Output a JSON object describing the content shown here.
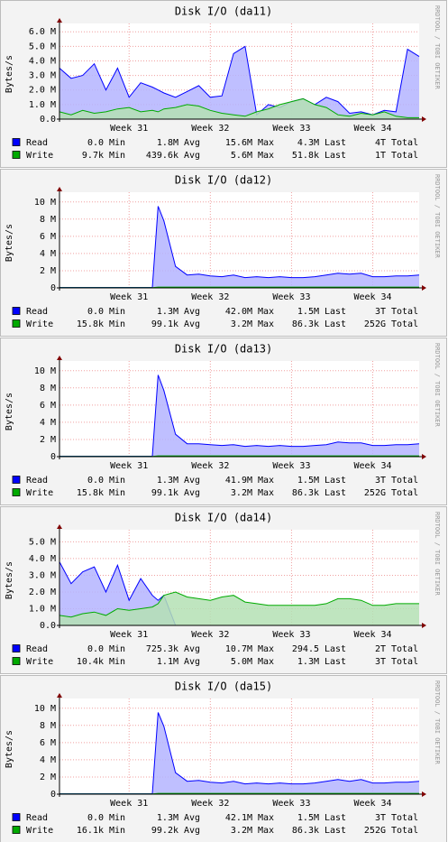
{
  "chart_data": [
    {
      "type": "area",
      "title": "Disk I/O (da11)",
      "y_label": "Bytes/s",
      "watermark": "RRDTOOL / TOBI OETIKER",
      "stat_labels": [
        "Min",
        "Avg",
        "Max",
        "Last",
        "Total"
      ],
      "x": [
        0,
        1,
        2,
        3,
        4,
        5,
        6,
        7,
        8,
        8.5,
        9,
        10,
        11,
        12,
        13,
        14,
        15,
        16,
        17,
        18,
        19,
        20,
        21,
        22,
        23,
        24,
        25,
        26,
        27,
        28,
        29,
        30,
        31
      ],
      "xlim": [
        0,
        31
      ],
      "xticks": [
        {
          "value": 6,
          "label": "Week 31"
        },
        {
          "value": 13,
          "label": "Week 32"
        },
        {
          "value": 20,
          "label": "Week 33"
        },
        {
          "value": 27,
          "label": "Week 34"
        }
      ],
      "ylim": [
        0,
        6200000
      ],
      "yticks": [
        {
          "value": 0,
          "label": "0.0"
        },
        {
          "value": 1000000,
          "label": "1.0 M"
        },
        {
          "value": 2000000,
          "label": "2.0 M"
        },
        {
          "value": 3000000,
          "label": "3.0 M"
        },
        {
          "value": 4000000,
          "label": "4.0 M"
        },
        {
          "value": 5000000,
          "label": "5.0 M"
        },
        {
          "value": 6000000,
          "label": "6.0 M"
        }
      ],
      "grid": true,
      "series": [
        {
          "name": "Read",
          "color": "#0000ff",
          "fill": "#b4b4ff",
          "stats": [
            "0.0",
            "1.8M",
            "15.6M",
            "4.3M",
            "4T"
          ],
          "values": [
            3500000,
            2800000,
            3000000,
            3800000,
            2000000,
            3500000,
            1500000,
            2500000,
            2200000,
            2000000,
            1800000,
            1500000,
            1900000,
            2300000,
            1500000,
            1600000,
            4500000,
            5000000,
            300000,
            1000000,
            800000,
            1200000,
            1400000,
            1000000,
            1500000,
            1200000,
            400000,
            500000,
            300000,
            600000,
            500000,
            4800000,
            4300000
          ]
        },
        {
          "name": "Write",
          "color": "#00aa00",
          "fill": "#b4e0b4",
          "stats": [
            "9.7k",
            "439.6k",
            "5.6M",
            "51.8k",
            "1T"
          ],
          "values": [
            500000,
            300000,
            600000,
            400000,
            500000,
            700000,
            800000,
            500000,
            600000,
            500000,
            700000,
            800000,
            1000000,
            900000,
            600000,
            400000,
            300000,
            200000,
            500000,
            700000,
            1000000,
            1200000,
            1400000,
            1000000,
            800000,
            300000,
            200000,
            400000,
            300000,
            500000,
            200000,
            100000,
            100000
          ]
        }
      ]
    },
    {
      "type": "area",
      "title": "Disk I/O (da12)",
      "y_label": "Bytes/s",
      "watermark": "RRDTOOL / TOBI OETIKER",
      "stat_labels": [
        "Min",
        "Avg",
        "Max",
        "Last",
        "Total"
      ],
      "x": [
        0,
        1,
        2,
        3,
        4,
        5,
        6,
        7,
        8,
        8.5,
        9,
        10,
        11,
        12,
        13,
        14,
        15,
        16,
        17,
        18,
        19,
        20,
        21,
        22,
        23,
        24,
        25,
        26,
        27,
        28,
        29,
        30,
        31
      ],
      "xlim": [
        0,
        31
      ],
      "xticks": [
        {
          "value": 6,
          "label": "Week 31"
        },
        {
          "value": 13,
          "label": "Week 32"
        },
        {
          "value": 20,
          "label": "Week 33"
        },
        {
          "value": 27,
          "label": "Week 34"
        }
      ],
      "ylim": [
        0,
        10500000
      ],
      "yticks": [
        0,
        {
          "value": 2000000,
          "label": "2 M"
        },
        {
          "value": 4000000,
          "label": "4 M"
        },
        {
          "value": 6000000,
          "label": "6 M"
        },
        {
          "value": 8000000,
          "label": "8 M"
        },
        {
          "value": 10000000,
          "label": "10 M"
        }
      ],
      "grid": true,
      "series": [
        {
          "name": "Read",
          "color": "#0000ff",
          "fill": "#b4b4ff",
          "stats": [
            "0.0",
            "1.3M",
            "42.0M",
            "1.5M",
            "3T"
          ],
          "values": [
            50000,
            50000,
            50000,
            50000,
            50000,
            50000,
            50000,
            50000,
            50000,
            9500000,
            7800000,
            2500000,
            1500000,
            1600000,
            1400000,
            1300000,
            1500000,
            1200000,
            1300000,
            1200000,
            1300000,
            1200000,
            1200000,
            1300000,
            1500000,
            1700000,
            1600000,
            1700000,
            1300000,
            1300000,
            1400000,
            1400000,
            1500000
          ]
        },
        {
          "name": "Write",
          "color": "#00aa00",
          "fill": "#b4e0b4",
          "stats": [
            "15.8k",
            "99.1k",
            "3.2M",
            "86.3k",
            "252G"
          ],
          "values": [
            20000,
            20000,
            20000,
            20000,
            20000,
            20000,
            20000,
            20000,
            20000,
            90000,
            90000,
            90000,
            90000,
            90000,
            90000,
            90000,
            90000,
            90000,
            90000,
            90000,
            90000,
            90000,
            90000,
            90000,
            90000,
            90000,
            90000,
            90000,
            90000,
            90000,
            90000,
            90000,
            90000
          ]
        }
      ]
    },
    {
      "type": "area",
      "title": "Disk I/O (da13)",
      "y_label": "Bytes/s",
      "watermark": "RRDTOOL / TOBI OETIKER",
      "stat_labels": [
        "Min",
        "Avg",
        "Max",
        "Last",
        "Total"
      ],
      "x": [
        0,
        1,
        2,
        3,
        4,
        5,
        6,
        7,
        8,
        8.5,
        9,
        10,
        11,
        12,
        13,
        14,
        15,
        16,
        17,
        18,
        19,
        20,
        21,
        22,
        23,
        24,
        25,
        26,
        27,
        28,
        29,
        30,
        31
      ],
      "xlim": [
        0,
        31
      ],
      "xticks": [
        {
          "value": 6,
          "label": "Week 31"
        },
        {
          "value": 13,
          "label": "Week 32"
        },
        {
          "value": 20,
          "label": "Week 33"
        },
        {
          "value": 27,
          "label": "Week 34"
        }
      ],
      "ylim": [
        0,
        10500000
      ],
      "yticks": [
        0,
        {
          "value": 2000000,
          "label": "2 M"
        },
        {
          "value": 4000000,
          "label": "4 M"
        },
        {
          "value": 6000000,
          "label": "6 M"
        },
        {
          "value": 8000000,
          "label": "8 M"
        },
        {
          "value": 10000000,
          "label": "10 M"
        }
      ],
      "grid": true,
      "series": [
        {
          "name": "Read",
          "color": "#0000ff",
          "fill": "#b4b4ff",
          "stats": [
            "0.0",
            "1.3M",
            "41.9M",
            "1.5M",
            "3T"
          ],
          "values": [
            50000,
            50000,
            50000,
            50000,
            50000,
            50000,
            50000,
            50000,
            50000,
            9500000,
            7700000,
            2600000,
            1500000,
            1500000,
            1400000,
            1300000,
            1400000,
            1200000,
            1300000,
            1200000,
            1300000,
            1200000,
            1200000,
            1300000,
            1400000,
            1700000,
            1600000,
            1600000,
            1300000,
            1300000,
            1400000,
            1400000,
            1500000
          ]
        },
        {
          "name": "Write",
          "color": "#00aa00",
          "fill": "#b4e0b4",
          "stats": [
            "15.8k",
            "99.1k",
            "3.2M",
            "86.3k",
            "252G"
          ],
          "values": [
            20000,
            20000,
            20000,
            20000,
            20000,
            20000,
            20000,
            20000,
            20000,
            90000,
            90000,
            90000,
            90000,
            90000,
            90000,
            90000,
            90000,
            90000,
            90000,
            90000,
            90000,
            90000,
            90000,
            90000,
            90000,
            90000,
            90000,
            90000,
            90000,
            90000,
            90000,
            90000,
            90000
          ]
        }
      ]
    },
    {
      "type": "area",
      "title": "Disk I/O (da14)",
      "y_label": "Bytes/s",
      "watermark": "RRDTOOL / TOBI OETIKER",
      "stat_labels": [
        "Min",
        "Avg",
        "Max",
        "Last",
        "Total"
      ],
      "x": [
        0,
        1,
        2,
        3,
        4,
        5,
        6,
        7,
        8,
        8.5,
        9,
        10,
        11,
        12,
        13,
        14,
        15,
        16,
        17,
        18,
        19,
        20,
        21,
        22,
        23,
        24,
        25,
        26,
        27,
        28,
        29,
        30,
        31
      ],
      "xlim": [
        0,
        31
      ],
      "xticks": [
        {
          "value": 6,
          "label": "Week 31"
        },
        {
          "value": 13,
          "label": "Week 32"
        },
        {
          "value": 20,
          "label": "Week 33"
        },
        {
          "value": 27,
          "label": "Week 34"
        }
      ],
      "ylim": [
        0,
        5400000
      ],
      "yticks": [
        {
          "value": 0,
          "label": "0.0"
        },
        {
          "value": 1000000,
          "label": "1.0 M"
        },
        {
          "value": 2000000,
          "label": "2.0 M"
        },
        {
          "value": 3000000,
          "label": "3.0 M"
        },
        {
          "value": 4000000,
          "label": "4.0 M"
        },
        {
          "value": 5000000,
          "label": "5.0 M"
        }
      ],
      "grid": true,
      "series": [
        {
          "name": "Read",
          "color": "#0000ff",
          "fill": "#b4b4ff",
          "stats": [
            "0.0",
            "725.3k",
            "10.7M",
            "294.5",
            "2T"
          ],
          "values": [
            3800000,
            2500000,
            3200000,
            3500000,
            2000000,
            3600000,
            1500000,
            2800000,
            1800000,
            1500000,
            1800000,
            0,
            0,
            0,
            0,
            0,
            0,
            0,
            0,
            0,
            0,
            0,
            0,
            0,
            0,
            0,
            0,
            0,
            0,
            0,
            0,
            0,
            0
          ]
        },
        {
          "name": "Write",
          "color": "#00aa00",
          "fill": "#b4e0b4",
          "stats": [
            "10.4k",
            "1.1M",
            "5.0M",
            "1.3M",
            "3T"
          ],
          "values": [
            600000,
            500000,
            700000,
            800000,
            600000,
            1000000,
            900000,
            1000000,
            1100000,
            1300000,
            1800000,
            2000000,
            1700000,
            1600000,
            1500000,
            1700000,
            1800000,
            1400000,
            1300000,
            1200000,
            1200000,
            1200000,
            1200000,
            1200000,
            1300000,
            1600000,
            1600000,
            1500000,
            1200000,
            1200000,
            1300000,
            1300000,
            1300000
          ]
        }
      ]
    },
    {
      "type": "area",
      "title": "Disk I/O (da15)",
      "y_label": "Bytes/s",
      "watermark": "RRDTOOL / TOBI OETIKER",
      "stat_labels": [
        "Min",
        "Avg",
        "Max",
        "Last",
        "Total"
      ],
      "x": [
        0,
        1,
        2,
        3,
        4,
        5,
        6,
        7,
        8,
        8.5,
        9,
        10,
        11,
        12,
        13,
        14,
        15,
        16,
        17,
        18,
        19,
        20,
        21,
        22,
        23,
        24,
        25,
        26,
        27,
        28,
        29,
        30,
        31
      ],
      "xlim": [
        0,
        31
      ],
      "xticks": [
        {
          "value": 6,
          "label": "Week 31"
        },
        {
          "value": 13,
          "label": "Week 32"
        },
        {
          "value": 20,
          "label": "Week 33"
        },
        {
          "value": 27,
          "label": "Week 34"
        }
      ],
      "ylim": [
        0,
        10500000
      ],
      "yticks": [
        0,
        {
          "value": 2000000,
          "label": "2 M"
        },
        {
          "value": 4000000,
          "label": "4 M"
        },
        {
          "value": 6000000,
          "label": "6 M"
        },
        {
          "value": 8000000,
          "label": "8 M"
        },
        {
          "value": 10000000,
          "label": "10 M"
        }
      ],
      "grid": true,
      "series": [
        {
          "name": "Read",
          "color": "#0000ff",
          "fill": "#b4b4ff",
          "stats": [
            "0.0",
            "1.3M",
            "42.1M",
            "1.5M",
            "3T"
          ],
          "values": [
            50000,
            50000,
            50000,
            50000,
            50000,
            50000,
            50000,
            50000,
            50000,
            9500000,
            7900000,
            2500000,
            1500000,
            1600000,
            1400000,
            1300000,
            1500000,
            1200000,
            1300000,
            1200000,
            1300000,
            1200000,
            1200000,
            1300000,
            1500000,
            1700000,
            1500000,
            1700000,
            1300000,
            1300000,
            1400000,
            1400000,
            1500000
          ]
        },
        {
          "name": "Write",
          "color": "#00aa00",
          "fill": "#b4e0b4",
          "stats": [
            "16.1k",
            "99.2k",
            "3.2M",
            "86.3k",
            "252G"
          ],
          "values": [
            20000,
            20000,
            20000,
            20000,
            20000,
            20000,
            20000,
            20000,
            20000,
            90000,
            90000,
            90000,
            90000,
            90000,
            90000,
            90000,
            90000,
            90000,
            90000,
            90000,
            90000,
            90000,
            90000,
            90000,
            90000,
            90000,
            90000,
            90000,
            90000,
            90000,
            90000,
            90000,
            90000
          ]
        }
      ]
    }
  ]
}
